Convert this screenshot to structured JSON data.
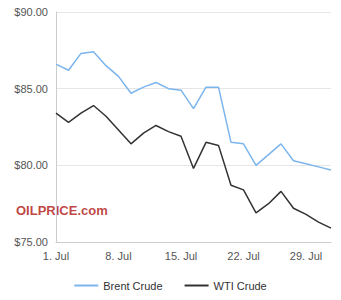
{
  "chart_data": {
    "type": "line",
    "categories": [
      "1. Jul",
      null,
      null,
      null,
      null,
      "8. Jul",
      null,
      null,
      null,
      null,
      "15. Jul",
      null,
      null,
      null,
      null,
      "22. Jul",
      null,
      null,
      null,
      null,
      "29. Jul",
      null,
      null
    ],
    "series": [
      {
        "name": "Brent Crude",
        "color": "#7cb5ec",
        "values": [
          86.6,
          86.2,
          87.3,
          87.4,
          86.5,
          85.8,
          84.7,
          85.1,
          85.4,
          85.0,
          84.9,
          83.7,
          85.1,
          85.1,
          81.5,
          81.4,
          80.0,
          80.7,
          81.4,
          80.3,
          80.1,
          79.9,
          79.7
        ]
      },
      {
        "name": "WTI Crude",
        "color": "#333333",
        "values": [
          83.4,
          82.8,
          83.4,
          83.9,
          83.2,
          82.3,
          81.4,
          82.1,
          82.6,
          82.2,
          81.9,
          79.8,
          81.5,
          81.3,
          78.7,
          78.4,
          76.9,
          77.5,
          78.3,
          77.2,
          76.8,
          76.3,
          75.9
        ]
      }
    ],
    "ylim": [
      75,
      90
    ],
    "yticks": [
      {
        "value": 75,
        "label": "$75.00"
      },
      {
        "value": 80,
        "label": "$80.00"
      },
      {
        "value": 85,
        "label": "$85.00"
      },
      {
        "value": 90,
        "label": "$90.00"
      }
    ],
    "grid": true,
    "legend": "bottom",
    "annotations": [
      "OILPRICE.com"
    ]
  }
}
